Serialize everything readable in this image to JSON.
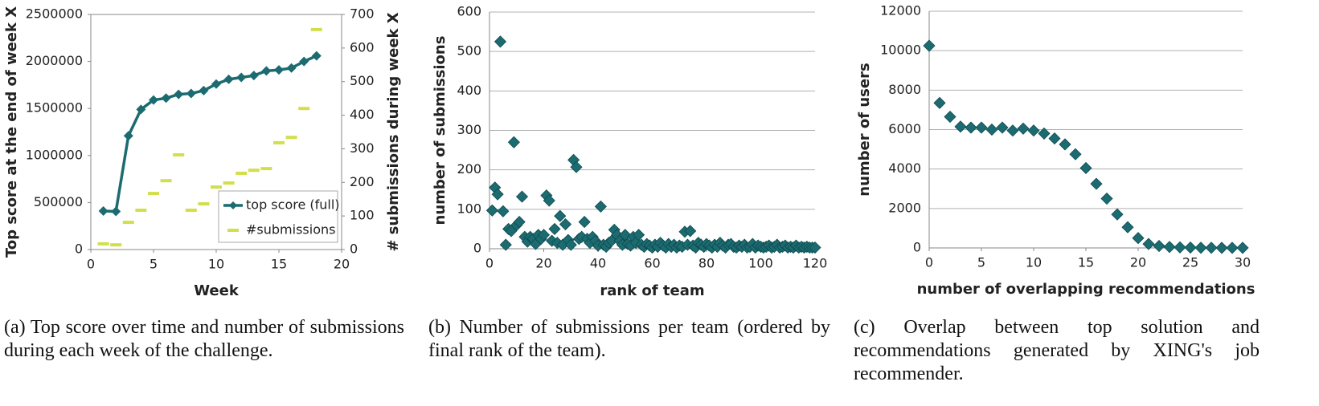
{
  "chart_data": [
    {
      "type": "line",
      "caption": "(a) Top score over time and number of submissions during each week of the challenge.",
      "x_label": "Week",
      "y_label": "Top score at the end of week X",
      "y2_label": "# submissions during week X",
      "x": [
        1,
        2,
        3,
        4,
        5,
        6,
        7,
        8,
        9,
        10,
        11,
        12,
        13,
        14,
        15,
        16,
        17,
        18
      ],
      "series": [
        {
          "name": "top score (full)",
          "color": "#1b6b70",
          "marker": "diamond",
          "values": [
            410000,
            405000,
            1210000,
            1490000,
            1590000,
            1610000,
            1650000,
            1660000,
            1690000,
            1760000,
            1810000,
            1830000,
            1850000,
            1900000,
            1910000,
            1930000,
            2000000,
            2060000
          ]
        },
        {
          "name": "#submissions",
          "color": "#d2df4a",
          "marker": "dash",
          "axis": "y2",
          "values": [
            17,
            14,
            81,
            117,
            167,
            205,
            282,
            117,
            136,
            186,
            198,
            227,
            236,
            241,
            318,
            334,
            420,
            655
          ]
        }
      ],
      "xlim": [
        0,
        20
      ],
      "xticks": [
        0,
        5,
        10,
        15,
        20
      ],
      "ylim": [
        0,
        2500000
      ],
      "yticks": [
        0,
        500000,
        1000000,
        1500000,
        2000000,
        2500000
      ],
      "y2lim": [
        0,
        700
      ],
      "y2ticks": [
        0,
        100,
        200,
        300,
        400,
        500,
        600,
        700
      ],
      "grid": false,
      "legend": "lower right"
    },
    {
      "type": "scatter",
      "caption": "(b) Number of submissions per team (ordered by final rank of the team).",
      "x_label": "rank of team",
      "y_label": "number of submissions",
      "color": "#1b6b70",
      "x": [
        1,
        2,
        3,
        4,
        5,
        6,
        7,
        8,
        9,
        10,
        11,
        12,
        13,
        14,
        15,
        16,
        17,
        18,
        19,
        20,
        21,
        22,
        23,
        24,
        25,
        26,
        27,
        28,
        29,
        30,
        31,
        32,
        33,
        34,
        35,
        36,
        37,
        38,
        39,
        40,
        41,
        42,
        43,
        44,
        45,
        46,
        47,
        48,
        49,
        50,
        51,
        52,
        53,
        54,
        55,
        56,
        57,
        58,
        59,
        60,
        61,
        62,
        63,
        64,
        65,
        66,
        67,
        68,
        69,
        70,
        71,
        72,
        73,
        74,
        75,
        76,
        77,
        78,
        79,
        80,
        81,
        82,
        83,
        84,
        85,
        86,
        87,
        88,
        89,
        90,
        91,
        92,
        93,
        94,
        95,
        96,
        97,
        98,
        99,
        100,
        101,
        102,
        103,
        104,
        105,
        106,
        107,
        108,
        109,
        110,
        111,
        112,
        113,
        114,
        115,
        116,
        117,
        118,
        119,
        120
      ],
      "values": [
        97,
        155,
        138,
        525,
        95,
        10,
        50,
        45,
        270,
        60,
        68,
        132,
        30,
        18,
        30,
        25,
        12,
        35,
        25,
        35,
        135,
        122,
        20,
        50,
        15,
        83,
        10,
        62,
        22,
        10,
        225,
        207,
        25,
        30,
        68,
        25,
        15,
        30,
        20,
        8,
        107,
        10,
        5,
        15,
        20,
        48,
        35,
        20,
        10,
        35,
        12,
        8,
        30,
        15,
        35,
        10,
        5,
        12,
        8,
        3,
        10,
        5,
        15,
        8,
        3,
        12,
        5,
        10,
        3,
        8,
        5,
        43,
        10,
        45,
        8,
        3,
        15,
        10,
        5,
        12,
        8,
        3,
        10,
        5,
        15,
        8,
        3,
        10,
        12,
        5,
        3,
        8,
        5,
        10,
        3,
        5,
        12,
        3,
        8,
        5,
        3,
        5,
        8,
        3,
        5,
        10,
        3,
        5,
        8,
        3,
        5,
        3,
        8,
        3,
        5,
        3,
        5,
        3,
        3,
        3
      ],
      "xlim": [
        0,
        120
      ],
      "xticks": [
        0,
        20,
        40,
        60,
        80,
        100,
        120
      ],
      "ylim": [
        0,
        600
      ],
      "yticks": [
        0,
        100,
        200,
        300,
        400,
        500,
        600
      ],
      "grid": true
    },
    {
      "type": "scatter",
      "caption": "(c) Overlap between top solution and recommendations generated by XING's job recommender.",
      "x_label": "number of overlapping recommendations",
      "y_label": "number of users",
      "color": "#1b6b70",
      "x": [
        0,
        1,
        2,
        3,
        4,
        5,
        6,
        7,
        8,
        9,
        10,
        11,
        12,
        13,
        14,
        15,
        16,
        17,
        18,
        19,
        20,
        21,
        22,
        23,
        24,
        25,
        26,
        27,
        28,
        29,
        30
      ],
      "values": [
        10250,
        7350,
        6650,
        6150,
        6100,
        6100,
        6000,
        6100,
        5950,
        6050,
        5950,
        5800,
        5550,
        5250,
        4750,
        4050,
        3250,
        2500,
        1700,
        1050,
        500,
        200,
        100,
        50,
        30,
        20,
        10,
        10,
        5,
        5,
        5
      ],
      "xlim": [
        0,
        30
      ],
      "xticks": [
        0,
        5,
        10,
        15,
        20,
        25,
        30
      ],
      "ylim": [
        0,
        12000
      ],
      "yticks": [
        0,
        2000,
        4000,
        6000,
        8000,
        10000,
        12000
      ],
      "grid": true
    }
  ]
}
